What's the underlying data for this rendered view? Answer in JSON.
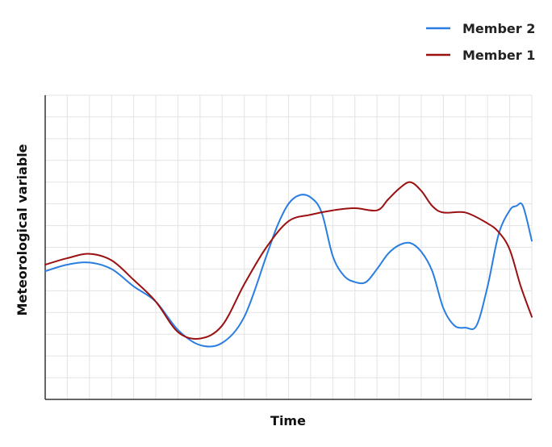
{
  "chart_data": {
    "type": "line",
    "title": "",
    "xlabel": "Time",
    "ylabel": "Meteorological variable",
    "x_ticks_labeled": false,
    "y_ticks_labeled": false,
    "grid": true,
    "legend_position": "top-right",
    "xlim": [
      0,
      22
    ],
    "ylim": [
      0,
      14
    ],
    "series": [
      {
        "name": "Member 2",
        "color": "#2a7de1",
        "x": [
          0,
          1,
          2,
          3,
          4,
          5,
          6,
          7,
          8,
          9,
          10,
          10.5,
          11,
          11.5,
          12,
          12.5,
          13,
          13.5,
          14,
          14.5,
          15,
          15.5,
          16,
          16.5,
          17,
          17.5,
          18,
          18.5,
          19,
          19.5,
          20,
          20.5,
          21,
          21.3,
          21.6,
          22
        ],
        "values": [
          5.9,
          6.2,
          6.3,
          6.0,
          5.2,
          4.5,
          3.2,
          2.5,
          2.6,
          3.8,
          6.6,
          8.0,
          9.0,
          9.4,
          9.3,
          8.6,
          6.6,
          5.7,
          5.4,
          5.4,
          6.0,
          6.7,
          7.1,
          7.2,
          6.8,
          5.9,
          4.2,
          3.4,
          3.3,
          3.4,
          5.2,
          7.6,
          8.7,
          8.9,
          8.9,
          7.3
        ],
        "legend_label": "Member 2"
      },
      {
        "name": "Member 1",
        "color": "#9b1010",
        "x": [
          0,
          1,
          2,
          3,
          4,
          5,
          6,
          7,
          8,
          9,
          10,
          11,
          12,
          13,
          14,
          15,
          15.5,
          16,
          16.5,
          17,
          17.5,
          18,
          19,
          20,
          20.5,
          21,
          21.5,
          22
        ],
        "values": [
          6.2,
          6.5,
          6.7,
          6.4,
          5.5,
          4.5,
          3.1,
          2.8,
          3.4,
          5.3,
          7.0,
          8.2,
          8.5,
          8.7,
          8.8,
          8.7,
          9.2,
          9.7,
          10.0,
          9.6,
          8.9,
          8.6,
          8.6,
          8.1,
          7.7,
          6.9,
          5.2,
          3.8
        ],
        "legend_label": "Member 1"
      }
    ]
  }
}
